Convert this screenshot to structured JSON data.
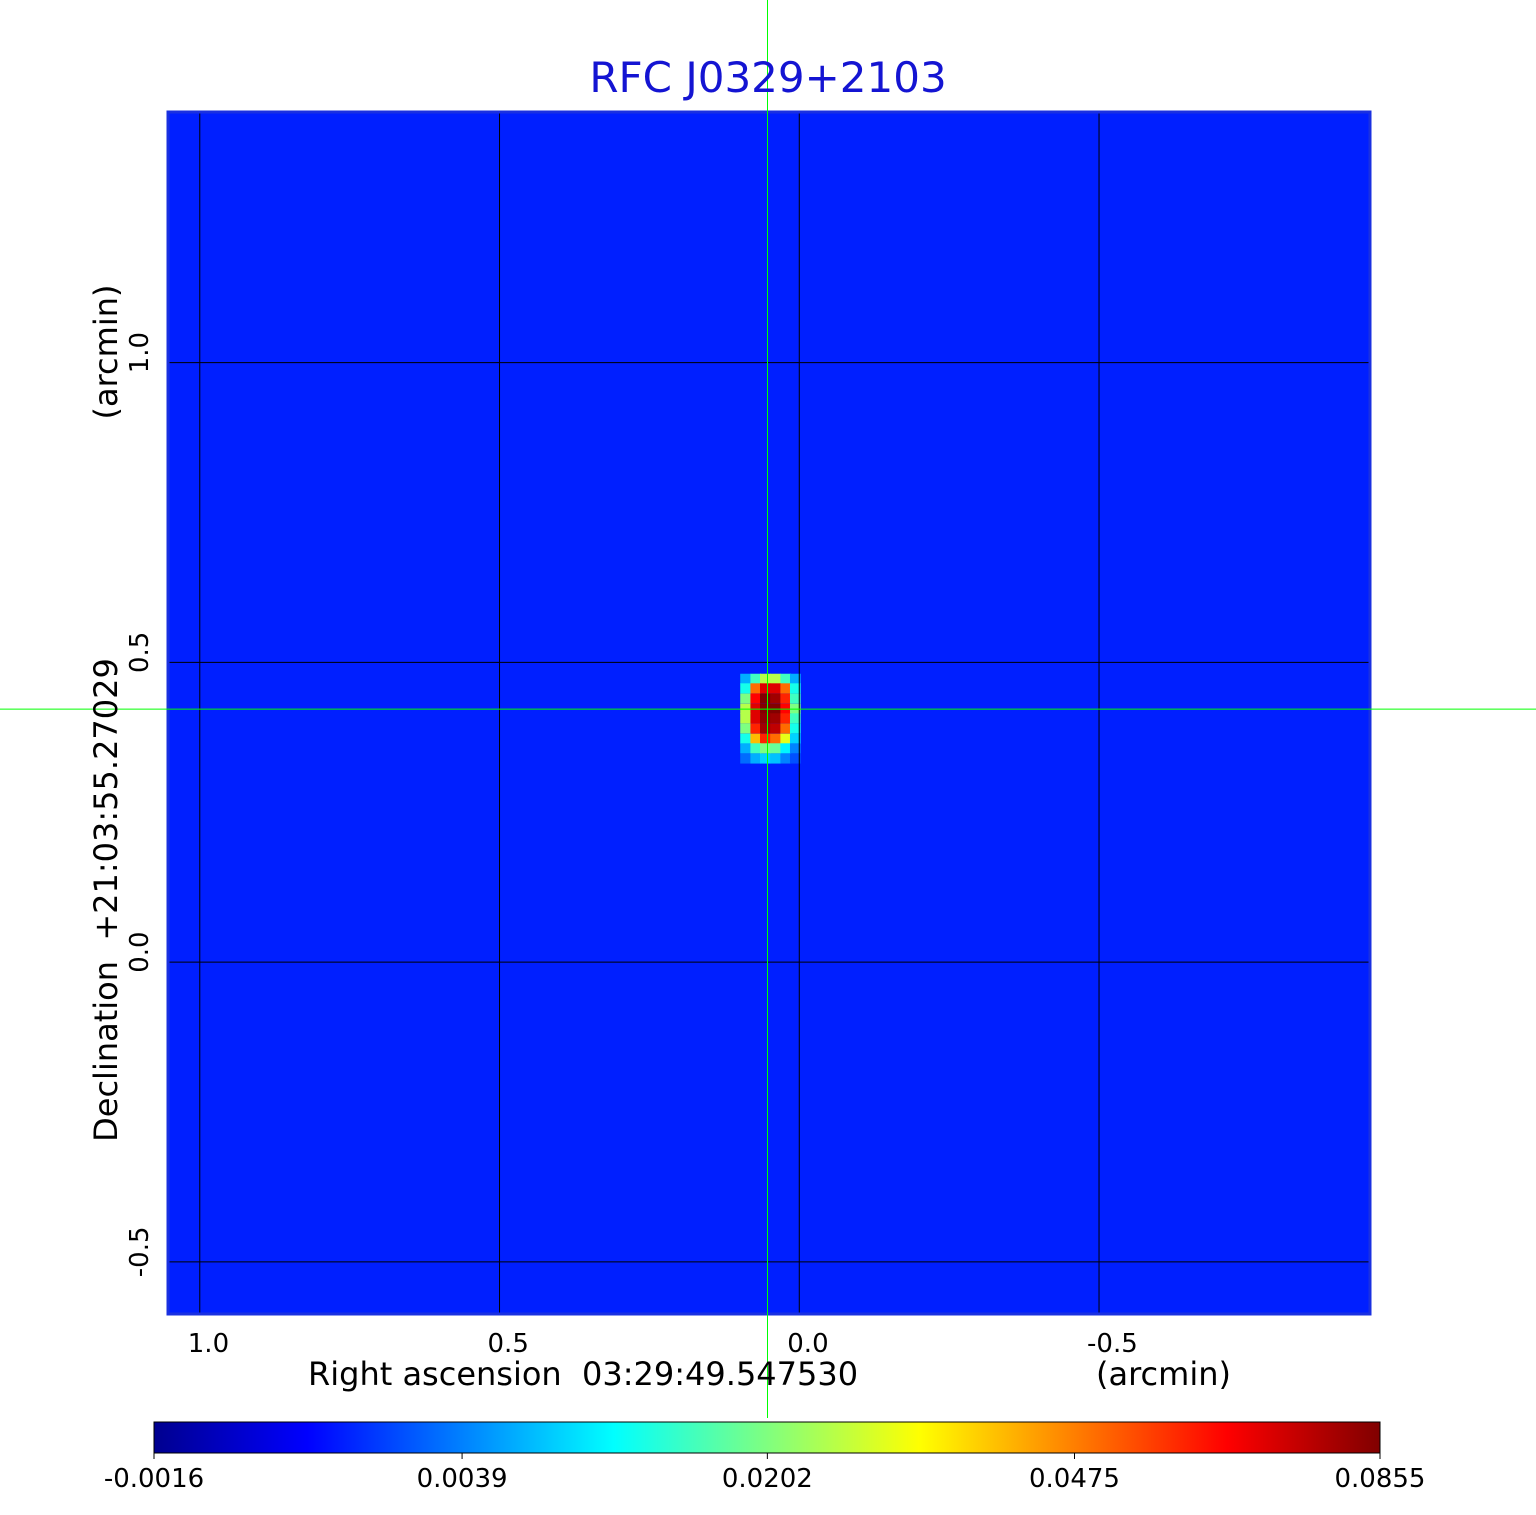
{
  "chart_data": {
    "type": "image",
    "title": "RFC J0329+2103",
    "xlabel": "Right ascension  03:29:49.547530",
    "xunit": "(arcmin)",
    "ylabel": "Declination  +21:03:55.27029",
    "yunit": "(arcmin)",
    "xlim": [
      1.053,
      -0.952
    ],
    "ylim": [
      -0.587,
      1.418
    ],
    "xticks": [
      {
        "value": 1,
        "label": "1.0"
      },
      0.5,
      {
        "value": 0,
        "label": "0.0"
      },
      -0.5
    ],
    "yticks": [
      {
        "value": 1,
        "label": "1.0"
      },
      0.5,
      {
        "value": 0,
        "label": "0.0"
      },
      -0.5
    ],
    "grid": true,
    "colormap": "jet",
    "background": 0.0005,
    "source": {
      "x": [
        0.09,
        0.073,
        0.057,
        0.04,
        0.023,
        0.007
      ],
      "y": [
        0.473,
        0.457,
        0.44,
        0.423,
        0.407,
        0.39,
        0.373,
        0.357,
        0.34
      ],
      "values": [
        [
          0.006,
          0.015,
          0.025,
          0.025,
          0.015,
          0.006
        ],
        [
          0.012,
          0.05,
          0.07,
          0.07,
          0.05,
          0.012
        ],
        [
          0.02,
          0.065,
          0.0855,
          0.08,
          0.06,
          0.015
        ],
        [
          0.025,
          0.07,
          0.085,
          0.085,
          0.065,
          0.02
        ],
        [
          0.025,
          0.07,
          0.083,
          0.08,
          0.06,
          0.015
        ],
        [
          0.02,
          0.06,
          0.08,
          0.075,
          0.05,
          0.012
        ],
        [
          0.012,
          0.04,
          0.06,
          0.05,
          0.03,
          0.008
        ],
        [
          0.006,
          0.015,
          0.02,
          0.018,
          0.01,
          0.004
        ],
        [
          0.003,
          0.006,
          0.008,
          0.007,
          0.004,
          0.002
        ]
      ]
    },
    "crosshair": {
      "x": 0.053,
      "y": 0.422,
      "color": "#00ff00"
    },
    "colorbar": {
      "scale": "sqrt",
      "lim": [
        -0.0016,
        0.0855
      ],
      "ticks": [
        -0.0016,
        0.0039,
        0.0202,
        0.0475,
        0.0855
      ]
    }
  }
}
